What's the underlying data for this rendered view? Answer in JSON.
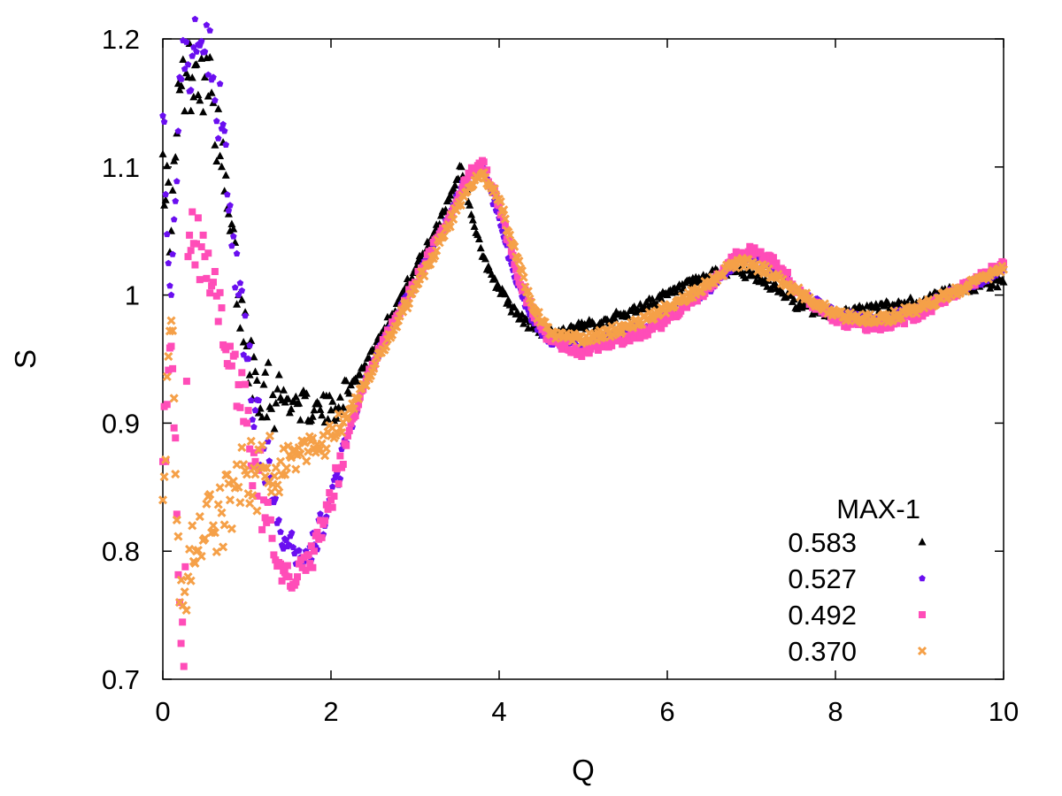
{
  "chart_data": {
    "type": "scatter",
    "title": "",
    "xlabel": "Q",
    "ylabel": "S",
    "xlim": [
      0,
      10
    ],
    "ylim": [
      0.7,
      1.2
    ],
    "xticks": [
      "0",
      "2",
      "4",
      "6",
      "8",
      "10"
    ],
    "yticks": [
      "0.7",
      "0.8",
      "0.9",
      "1",
      "1.1",
      "1.2"
    ],
    "grid": false,
    "legend": {
      "title": "MAX-1",
      "position": "bottom-right",
      "entries": [
        "0.583",
        "0.527",
        "0.492",
        "0.370"
      ]
    },
    "series": [
      {
        "name": "0.583",
        "color": "#000000",
        "marker": "triangle",
        "x": [
          0.0,
          0.1,
          0.2,
          0.3,
          0.4,
          0.5,
          0.6,
          0.7,
          0.8,
          0.9,
          1.0,
          1.1,
          1.2,
          1.4,
          1.6,
          1.8,
          2.0,
          2.2,
          2.4,
          2.6,
          2.8,
          3.0,
          3.2,
          3.4,
          3.55,
          3.65,
          3.8,
          4.0,
          4.2,
          4.4,
          4.6,
          5.0,
          5.5,
          6.0,
          6.5,
          6.8,
          7.0,
          7.3,
          7.6,
          8.0,
          8.5,
          9.0,
          9.5,
          10.0
        ],
        "y": [
          1.11,
          1.05,
          1.16,
          1.17,
          1.18,
          1.17,
          1.15,
          1.1,
          1.05,
          1.0,
          0.96,
          0.94,
          0.93,
          0.92,
          0.915,
          0.91,
          0.91,
          0.925,
          0.945,
          0.97,
          0.995,
          1.02,
          1.045,
          1.075,
          1.1,
          1.07,
          1.03,
          1.005,
          0.985,
          0.975,
          0.97,
          0.975,
          0.985,
          1.0,
          1.015,
          1.02,
          1.015,
          1.005,
          0.99,
          0.985,
          0.99,
          0.995,
          1.005,
          1.01
        ]
      },
      {
        "name": "0.527",
        "color": "#6a0ef0",
        "marker": "pentagon",
        "x": [
          0.0,
          0.1,
          0.2,
          0.3,
          0.4,
          0.5,
          0.6,
          0.7,
          0.8,
          0.9,
          1.0,
          1.1,
          1.2,
          1.3,
          1.4,
          1.5,
          1.6,
          1.7,
          1.8,
          2.0,
          2.2,
          2.4,
          2.6,
          2.8,
          3.0,
          3.2,
          3.4,
          3.6,
          3.8,
          4.0,
          4.2,
          4.4,
          4.6,
          5.0,
          5.5,
          6.0,
          6.5,
          6.8,
          7.0,
          7.3,
          7.6,
          8.0,
          8.5,
          9.0,
          9.5,
          10.0
        ],
        "y": [
          1.14,
          1.0,
          1.17,
          1.18,
          1.19,
          1.19,
          1.17,
          1.13,
          1.07,
          1.0,
          0.95,
          0.91,
          0.88,
          0.84,
          0.815,
          0.805,
          0.8,
          0.8,
          0.805,
          0.84,
          0.89,
          0.93,
          0.96,
          0.985,
          1.01,
          1.035,
          1.06,
          1.09,
          1.1,
          1.06,
          1.01,
          0.98,
          0.965,
          0.96,
          0.97,
          0.985,
          1.005,
          1.025,
          1.03,
          1.02,
          1.0,
          0.985,
          0.98,
          0.99,
          1.005,
          1.02
        ]
      },
      {
        "name": "0.492",
        "color": "#ff4db8",
        "marker": "square",
        "x": [
          0.0,
          0.1,
          0.2,
          0.25,
          0.3,
          0.4,
          0.5,
          0.6,
          0.7,
          0.8,
          0.9,
          1.0,
          1.1,
          1.2,
          1.3,
          1.4,
          1.5,
          1.6,
          1.7,
          1.8,
          2.0,
          2.2,
          2.4,
          2.6,
          2.8,
          3.0,
          3.2,
          3.4,
          3.6,
          3.8,
          4.0,
          4.2,
          4.4,
          4.6,
          5.0,
          5.5,
          6.0,
          6.5,
          6.8,
          7.0,
          7.3,
          7.6,
          8.0,
          8.5,
          9.0,
          9.5,
          10.0
        ],
        "y": [
          0.87,
          0.96,
          0.76,
          0.71,
          1.03,
          1.04,
          1.03,
          1.01,
          0.99,
          0.96,
          0.93,
          0.9,
          0.87,
          0.84,
          0.81,
          0.79,
          0.78,
          0.78,
          0.785,
          0.8,
          0.84,
          0.89,
          0.93,
          0.96,
          0.985,
          1.01,
          1.035,
          1.06,
          1.09,
          1.105,
          1.07,
          1.02,
          0.985,
          0.965,
          0.955,
          0.965,
          0.98,
          1.005,
          1.03,
          1.035,
          1.025,
          1.0,
          0.98,
          0.975,
          0.985,
          1.005,
          1.025
        ]
      },
      {
        "name": "0.370",
        "color": "#f5a048",
        "marker": "cross",
        "x": [
          0.0,
          0.1,
          0.2,
          0.3,
          0.4,
          0.5,
          0.6,
          0.7,
          0.8,
          0.9,
          1.0,
          1.1,
          1.2,
          1.4,
          1.6,
          1.8,
          2.0,
          2.2,
          2.4,
          2.6,
          2.8,
          3.0,
          3.2,
          3.4,
          3.6,
          3.8,
          4.0,
          4.2,
          4.4,
          4.6,
          5.0,
          5.5,
          6.0,
          6.5,
          6.8,
          7.0,
          7.3,
          7.6,
          8.0,
          8.5,
          9.0,
          9.5,
          10.0
        ],
        "y": [
          0.84,
          0.98,
          0.76,
          0.78,
          0.8,
          0.81,
          0.82,
          0.83,
          0.84,
          0.85,
          0.86,
          0.86,
          0.865,
          0.87,
          0.875,
          0.88,
          0.89,
          0.905,
          0.93,
          0.955,
          0.98,
          1.005,
          1.03,
          1.055,
          1.08,
          1.095,
          1.075,
          1.03,
          0.99,
          0.97,
          0.965,
          0.975,
          0.99,
          1.01,
          1.025,
          1.025,
          1.015,
          1.0,
          0.985,
          0.98,
          0.99,
          1.005,
          1.02
        ]
      }
    ]
  }
}
